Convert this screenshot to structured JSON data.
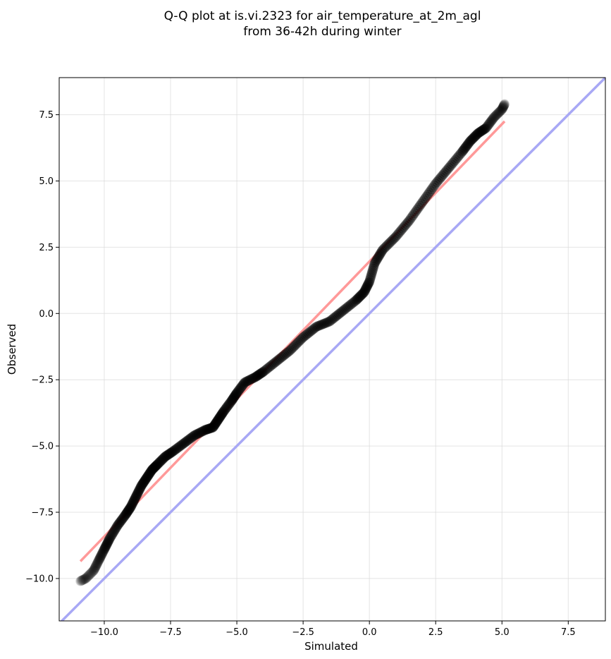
{
  "chart_data": {
    "type": "scatter",
    "title_lines": [
      "Q-Q plot at is.vi.2323 for air_temperature_at_2m_agl",
      "from 36-42h during winter"
    ],
    "xlabel": "Simulated",
    "ylabel": "Observed",
    "xlim": [
      -11.7,
      8.9
    ],
    "ylim": [
      -11.6,
      8.9
    ],
    "xticks": [
      -10.0,
      -7.5,
      -5.0,
      -2.5,
      0.0,
      2.5,
      5.0,
      7.5
    ],
    "yticks": [
      -10.0,
      -7.5,
      -5.0,
      -2.5,
      0.0,
      2.5,
      5.0,
      7.5
    ],
    "xtick_labels": [
      "−10.0",
      "−7.5",
      "−5.0",
      "−2.5",
      "0.0",
      "2.5",
      "5.0",
      "7.5"
    ],
    "ytick_labels": [
      "−10.0",
      "−7.5",
      "−5.0",
      "−2.5",
      "0.0",
      "2.5",
      "5.0",
      "7.5"
    ],
    "grid": true,
    "quantiles": {
      "x": [
        -10.9,
        -10.7,
        -10.4,
        -10.2,
        -10.0,
        -9.8,
        -9.5,
        -9.2,
        -9.0,
        -8.8,
        -8.6,
        -8.4,
        -8.2,
        -8.0,
        -7.7,
        -7.4,
        -7.0,
        -6.6,
        -6.2,
        -5.9,
        -5.7,
        -5.5,
        -5.2,
        -5.0,
        -4.7,
        -4.3,
        -4.0,
        -3.5,
        -3.0,
        -2.5,
        -2.0,
        -1.5,
        -1.0,
        -0.5,
        -0.2,
        0.0,
        0.2,
        0.5,
        1.0,
        1.5,
        2.0,
        2.5,
        3.0,
        3.5,
        3.8,
        4.1,
        4.4,
        4.7,
        5.0,
        5.1
      ],
      "y": [
        -10.1,
        -10.0,
        -9.7,
        -9.3,
        -8.9,
        -8.5,
        -8.0,
        -7.6,
        -7.3,
        -6.9,
        -6.5,
        -6.2,
        -5.9,
        -5.7,
        -5.4,
        -5.2,
        -4.9,
        -4.6,
        -4.4,
        -4.3,
        -4.0,
        -3.7,
        -3.3,
        -3.0,
        -2.6,
        -2.4,
        -2.2,
        -1.8,
        -1.4,
        -0.9,
        -0.5,
        -0.3,
        0.1,
        0.5,
        0.8,
        1.2,
        1.9,
        2.4,
        2.9,
        3.5,
        4.2,
        4.9,
        5.5,
        6.1,
        6.5,
        6.8,
        7.0,
        7.4,
        7.7,
        7.9
      ]
    },
    "fit_line": {
      "x": [
        -10.9,
        5.1
      ],
      "y": [
        -9.35,
        7.25
      ],
      "color": "#ff9999"
    },
    "identity_line": {
      "x": [
        -11.7,
        8.9
      ],
      "y": [
        -11.7,
        8.9
      ],
      "color": "#a8a8f5"
    },
    "point_color": "#000000"
  }
}
